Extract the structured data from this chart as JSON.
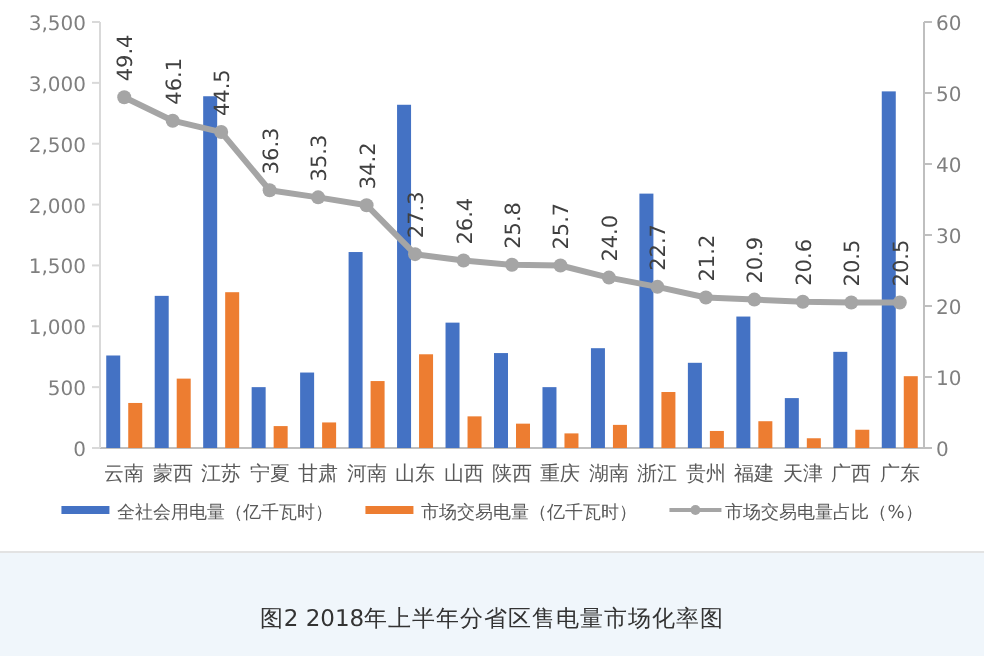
{
  "chart_data": {
    "type": "bar",
    "categories": [
      "云南",
      "蒙西",
      "江苏",
      "宁夏",
      "甘肃",
      "河南",
      "山东",
      "山西",
      "陕西",
      "重庆",
      "湖南",
      "浙江",
      "贵州",
      "福建",
      "天津",
      "广西",
      "广东"
    ],
    "series": [
      {
        "name": "全社会用电量（亿千瓦时）",
        "color": "#4472c4",
        "values": [
          760,
          1250,
          2890,
          500,
          620,
          1610,
          2820,
          1030,
          780,
          500,
          820,
          2090,
          700,
          1080,
          410,
          790,
          2930
        ]
      },
      {
        "name": "市场交易电量（亿千瓦时）",
        "color": "#ed7d31",
        "values": [
          370,
          570,
          1280,
          180,
          210,
          550,
          770,
          260,
          200,
          120,
          190,
          460,
          140,
          220,
          80,
          150,
          590
        ]
      },
      {
        "name": "市场交易电量占比（%）",
        "color": "#a5a5a5",
        "type": "line",
        "axis": "y2",
        "marker": "circle",
        "values": [
          49.4,
          46.1,
          44.5,
          36.3,
          35.3,
          34.2,
          27.3,
          26.4,
          25.8,
          25.7,
          24.0,
          22.7,
          21.2,
          20.9,
          20.6,
          20.5,
          20.5
        ],
        "value_labels": [
          "49.4",
          "46.1",
          "44.5",
          "36.3",
          "35.3",
          "34.2",
          "27.3",
          "26.4",
          "25.8",
          "25.7",
          "24.0",
          "22.7",
          "21.2",
          "20.9",
          "20.6",
          "20.5",
          "20.5"
        ]
      }
    ],
    "ylim": [
      0,
      3500
    ],
    "yticks": [
      0,
      500,
      {
        "value": 1000,
        "label": "1,000"
      },
      {
        "value": 1500,
        "label": "1,500"
      },
      {
        "value": 2000,
        "label": "2,000"
      },
      {
        "value": 2500,
        "label": "2,500"
      },
      {
        "value": 3000,
        "label": "3,000"
      },
      {
        "value": 3500,
        "label": "3,500"
      }
    ],
    "y2lim": [
      0,
      60
    ],
    "y2ticks": [
      0,
      10,
      20,
      30,
      40,
      50,
      60
    ],
    "legend": "bottom",
    "grid": false,
    "annotations": [
      "图2 2018年上半年分省区售电量市场化率图"
    ]
  }
}
